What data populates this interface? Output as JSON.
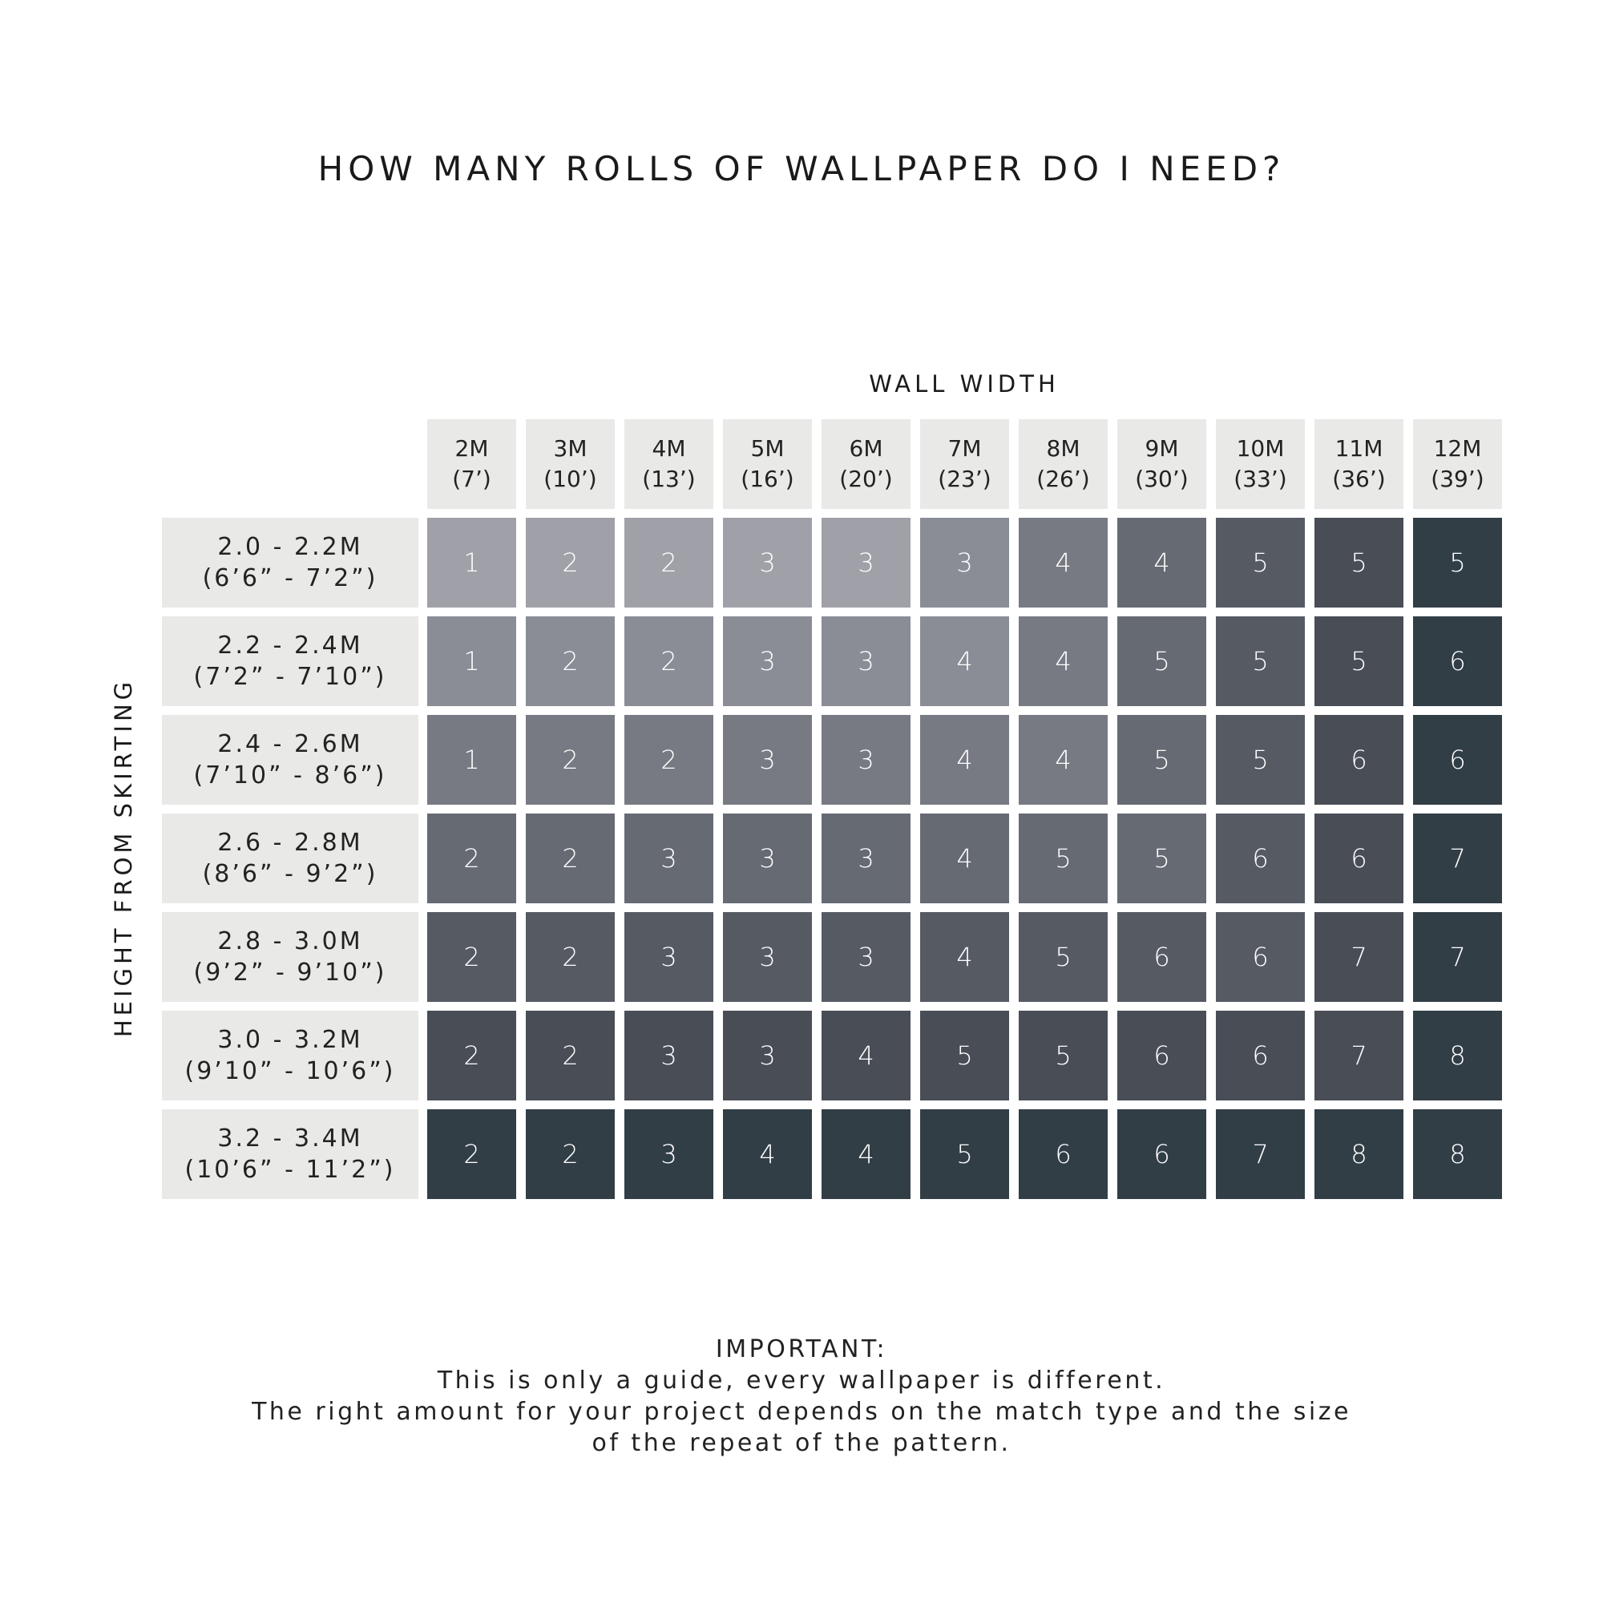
{
  "chart_data": {
    "type": "table",
    "title": "HOW MANY ROLLS OF WALLPAPER DO I NEED?",
    "xlabel": "WALL WIDTH",
    "ylabel": "HEIGHT FROM SKIRTING",
    "columns": [
      {
        "metric": "2M",
        "imperial": "(7’)"
      },
      {
        "metric": "3M",
        "imperial": "(10’)"
      },
      {
        "metric": "4M",
        "imperial": "(13’)"
      },
      {
        "metric": "5M",
        "imperial": "(16’)"
      },
      {
        "metric": "6M",
        "imperial": "(20’)"
      },
      {
        "metric": "7M",
        "imperial": "(23’)"
      },
      {
        "metric": "8M",
        "imperial": "(26’)"
      },
      {
        "metric": "9M",
        "imperial": "(30’)"
      },
      {
        "metric": "10M",
        "imperial": "(33’)"
      },
      {
        "metric": "11M",
        "imperial": "(36’)"
      },
      {
        "metric": "12M",
        "imperial": "(39’)"
      }
    ],
    "rows": [
      {
        "metric": "2.0 - 2.2M",
        "imperial": "(6’6” - 7’2”)"
      },
      {
        "metric": "2.2 - 2.4M",
        "imperial": "(7’2” - 7’10”)"
      },
      {
        "metric": "2.4 - 2.6M",
        "imperial": "(7’10” - 8’6”)"
      },
      {
        "metric": "2.6 - 2.8M",
        "imperial": "(8’6” - 9’2”)"
      },
      {
        "metric": "2.8 - 3.0M",
        "imperial": "(9’2” - 9’10”)"
      },
      {
        "metric": "3.0 - 3.2M",
        "imperial": "(9’10” - 10’6”)"
      },
      {
        "metric": "3.2 - 3.4M",
        "imperial": "(10’6” - 11’2”)"
      }
    ],
    "values": [
      [
        1,
        2,
        2,
        3,
        3,
        3,
        4,
        4,
        5,
        5,
        5
      ],
      [
        1,
        2,
        2,
        3,
        3,
        4,
        4,
        5,
        5,
        5,
        6
      ],
      [
        1,
        2,
        2,
        3,
        3,
        4,
        4,
        5,
        5,
        6,
        6
      ],
      [
        2,
        2,
        3,
        3,
        3,
        4,
        5,
        5,
        6,
        6,
        7
      ],
      [
        2,
        2,
        3,
        3,
        3,
        4,
        5,
        6,
        6,
        7,
        7
      ],
      [
        2,
        2,
        3,
        3,
        4,
        5,
        5,
        6,
        6,
        7,
        8
      ],
      [
        2,
        2,
        3,
        4,
        4,
        5,
        6,
        6,
        7,
        8,
        8
      ]
    ],
    "shade_palette": [
      "#a0a0a8",
      "#8a8d95",
      "#777a82",
      "#666a72",
      "#555a63",
      "#484d56",
      "#323e46"
    ],
    "shades": [
      [
        0,
        0,
        0,
        0,
        0,
        1,
        2,
        3,
        4,
        5,
        6
      ],
      [
        1,
        1,
        1,
        1,
        1,
        1,
        2,
        3,
        4,
        5,
        6
      ],
      [
        2,
        2,
        2,
        2,
        2,
        2,
        2,
        3,
        4,
        5,
        6
      ],
      [
        3,
        3,
        3,
        3,
        3,
        3,
        3,
        3,
        4,
        5,
        6
      ],
      [
        4,
        4,
        4,
        4,
        4,
        4,
        4,
        4,
        4,
        5,
        6
      ],
      [
        5,
        5,
        5,
        5,
        5,
        5,
        5,
        5,
        5,
        5,
        6
      ],
      [
        6,
        6,
        6,
        6,
        6,
        6,
        6,
        6,
        6,
        6,
        6
      ]
    ]
  },
  "note": {
    "heading": "IMPORTANT:",
    "lines": [
      "This is only a guide, every wallpaper is different.",
      "The right amount for your project depends on the match type and the size",
      "of the repeat of the pattern."
    ]
  }
}
